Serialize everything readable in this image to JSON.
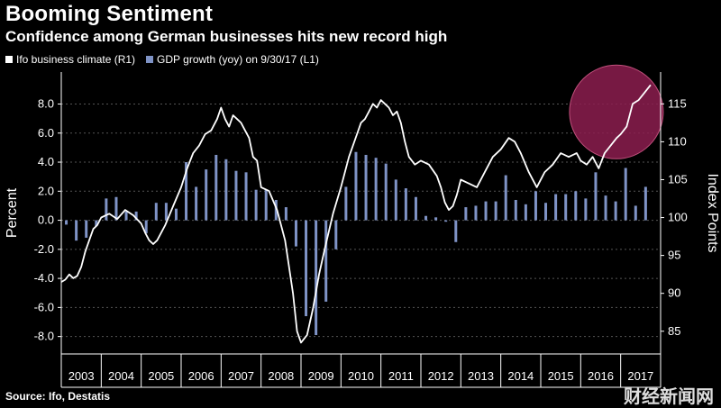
{
  "header": {
    "title": "Booming Sentiment",
    "subtitle": "Confidence among German businesses hits new record high"
  },
  "legend": {
    "line_label": "Ifo business climate (R1)",
    "bar_label": "GDP growth (yoy) on 9/30/17 (L1)"
  },
  "footer": {
    "source": "Source: Ifo, Destatis",
    "watermark": "财经新闻网"
  },
  "colors": {
    "background": "#000000",
    "line": "#ffffff",
    "bars": "#7f93c6",
    "highlight_fill": "#8c1d4f",
    "highlight_stroke": "#c0507c",
    "grid": "#555555"
  },
  "chart_data": {
    "type": "bar+line",
    "ylabel_left": "Percent",
    "ylabel_right": "Index Points",
    "left_axis": {
      "min": -9.2,
      "max": 10.2,
      "ticks": [
        -8.0,
        -6.0,
        -4.0,
        -2.0,
        0.0,
        2.0,
        4.0,
        6.0,
        8.0
      ]
    },
    "right_axis": {
      "min": 82,
      "max": 119.2,
      "ticks": [
        85,
        90,
        95,
        100,
        105,
        110,
        115
      ]
    },
    "x_axis": {
      "start": 2003.0,
      "end": 2018.0,
      "labels": [
        "2003",
        "2004",
        "2005",
        "2006",
        "2007",
        "2008",
        "2009",
        "2010",
        "2011",
        "2012",
        "2013",
        "2014",
        "2015",
        "2016",
        "2017"
      ]
    },
    "grid": "dashed horizontal",
    "bar_series": {
      "name": "GDP growth (yoy) on 9/30/17 (L1)",
      "axis": "left",
      "x": [
        2003.125,
        2003.375,
        2003.625,
        2003.875,
        2004.125,
        2004.375,
        2004.625,
        2004.875,
        2005.125,
        2005.375,
        2005.625,
        2005.875,
        2006.125,
        2006.375,
        2006.625,
        2006.875,
        2007.125,
        2007.375,
        2007.625,
        2007.875,
        2008.125,
        2008.375,
        2008.625,
        2008.875,
        2009.125,
        2009.375,
        2009.625,
        2009.875,
        2010.125,
        2010.375,
        2010.625,
        2010.875,
        2011.125,
        2011.375,
        2011.625,
        2011.875,
        2012.125,
        2012.375,
        2012.625,
        2012.875,
        2013.125,
        2013.375,
        2013.625,
        2013.875,
        2014.125,
        2014.375,
        2014.625,
        2014.875,
        2015.125,
        2015.375,
        2015.625,
        2015.875,
        2016.125,
        2016.375,
        2016.625,
        2016.875,
        2017.125,
        2017.375,
        2017.625
      ],
      "values": [
        -0.3,
        -1.4,
        -1.2,
        -0.4,
        1.5,
        1.6,
        0.6,
        0.6,
        -0.9,
        1.2,
        1.2,
        0.8,
        4.0,
        2.3,
        3.5,
        4.5,
        4.2,
        3.4,
        3.3,
        2.1,
        2.1,
        1.4,
        0.9,
        -1.8,
        -6.6,
        -7.9,
        -5.6,
        -2.0,
        2.3,
        4.7,
        4.5,
        4.3,
        3.9,
        2.8,
        2.2,
        1.6,
        0.3,
        0.2,
        -0.1,
        -1.5,
        0.9,
        1.0,
        1.3,
        1.3,
        3.1,
        1.4,
        1.1,
        2.0,
        1.2,
        1.8,
        1.8,
        2.0,
        1.5,
        3.3,
        1.7,
        1.3,
        3.6,
        1.0,
        2.3
      ]
    },
    "line_series": {
      "name": "Ifo business climate (R1)",
      "axis": "right",
      "x": [
        2003.0,
        2003.1,
        2003.2,
        2003.3,
        2003.4,
        2003.5,
        2003.6,
        2003.7,
        2003.8,
        2003.9,
        2004.0,
        2004.2,
        2004.4,
        2004.6,
        2004.8,
        2005.0,
        2005.1,
        2005.2,
        2005.3,
        2005.4,
        2005.6,
        2005.8,
        2006.0,
        2006.15,
        2006.3,
        2006.45,
        2006.6,
        2006.75,
        2006.9,
        2007.0,
        2007.1,
        2007.2,
        2007.3,
        2007.4,
        2007.5,
        2007.6,
        2007.7,
        2007.8,
        2007.9,
        2008.0,
        2008.2,
        2008.4,
        2008.6,
        2008.8,
        2008.9,
        2009.0,
        2009.15,
        2009.3,
        2009.45,
        2009.6,
        2009.8,
        2010.0,
        2010.2,
        2010.4,
        2010.5,
        2010.6,
        2010.7,
        2010.8,
        2010.9,
        2011.0,
        2011.1,
        2011.2,
        2011.3,
        2011.4,
        2011.5,
        2011.6,
        2011.7,
        2011.85,
        2012.0,
        2012.2,
        2012.4,
        2012.5,
        2012.6,
        2012.7,
        2012.8,
        2012.9,
        2013.0,
        2013.2,
        2013.4,
        2013.6,
        2013.8,
        2014.0,
        2014.2,
        2014.35,
        2014.5,
        2014.7,
        2014.9,
        2015.1,
        2015.3,
        2015.5,
        2015.7,
        2015.9,
        2016.0,
        2016.15,
        2016.3,
        2016.45,
        2016.6,
        2016.75,
        2016.9,
        2017.0,
        2017.15,
        2017.3,
        2017.45,
        2017.6,
        2017.75
      ],
      "values": [
        91.5,
        91.8,
        92.5,
        92.0,
        92.3,
        93.5,
        95.5,
        97.0,
        98.5,
        99.0,
        100.0,
        100.5,
        99.8,
        101.0,
        100.3,
        99.2,
        98.0,
        97.0,
        96.5,
        97.0,
        99.0,
        101.5,
        104.0,
        106.5,
        108.5,
        109.5,
        111.0,
        111.5,
        113.0,
        114.5,
        113.0,
        112.0,
        113.5,
        113.0,
        112.5,
        111.5,
        110.5,
        108.0,
        107.5,
        104.0,
        103.5,
        101.0,
        97.0,
        90.0,
        85.0,
        83.5,
        84.5,
        88.0,
        92.5,
        96.0,
        100.5,
        104.0,
        108.0,
        111.0,
        112.5,
        113.0,
        114.0,
        115.0,
        114.5,
        115.5,
        115.0,
        114.5,
        113.5,
        114.0,
        112.5,
        110.0,
        108.0,
        107.0,
        107.5,
        107.0,
        105.5,
        104.0,
        102.0,
        101.0,
        101.5,
        103.0,
        105.0,
        104.5,
        104.0,
        106.0,
        108.0,
        109.0,
        110.5,
        110.0,
        108.5,
        106.0,
        104.0,
        106.0,
        107.0,
        108.5,
        108.0,
        108.5,
        107.5,
        107.0,
        108.0,
        106.5,
        108.5,
        109.5,
        110.5,
        111.0,
        112.0,
        115.0,
        115.5,
        116.5,
        117.5
      ]
    }
  }
}
